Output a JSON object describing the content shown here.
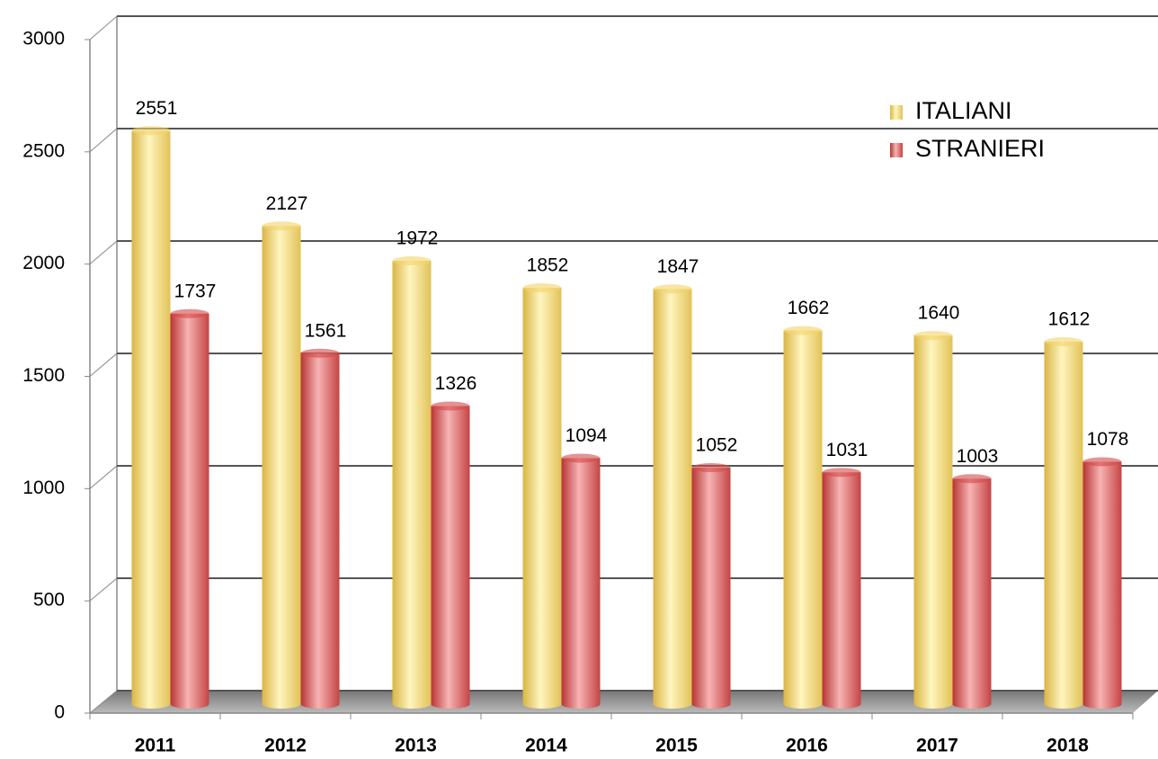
{
  "chart_data": {
    "type": "bar",
    "categories": [
      "2011",
      "2012",
      "2013",
      "2014",
      "2015",
      "2016",
      "2017",
      "2018"
    ],
    "series": [
      {
        "name": "ITALIANI",
        "color": "#f3d46a",
        "values": [
          2551,
          2127,
          1972,
          1852,
          1847,
          1662,
          1640,
          1612
        ]
      },
      {
        "name": "STRANIERI",
        "color": "#d44a4a",
        "values": [
          1737,
          1561,
          1326,
          1094,
          1052,
          1031,
          1003,
          1078
        ]
      }
    ],
    "ylim": [
      0,
      3000
    ],
    "yticks": [
      0,
      500,
      1000,
      1500,
      2000,
      2500,
      3000
    ],
    "grid": true,
    "legend": "top-right"
  }
}
